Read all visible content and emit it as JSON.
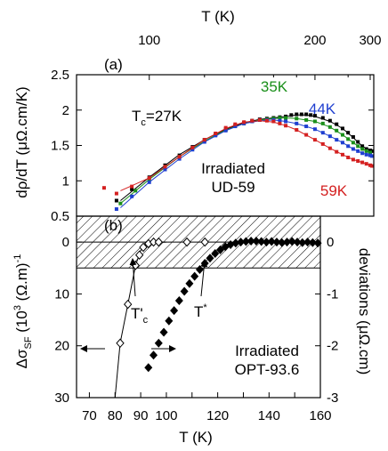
{
  "chart_data": [
    {
      "type": "scatter",
      "panel_label": "(a)",
      "xlabel": "T (K)",
      "ylabel": "dρ/dT (μΩ.cm/K)",
      "x_scale": "reciprocal",
      "xlim": [
        82,
        310
      ],
      "ylim": [
        0.5,
        2.5
      ],
      "x_ticks": [
        100,
        200,
        300
      ],
      "y_ticks": [
        0.5,
        1,
        1.5,
        2,
        2.5
      ],
      "tc_prefix": "T",
      "tc_sub": "c",
      "tc_value": "=27K",
      "label_lines": [
        "Irradiated",
        "UD-59"
      ],
      "series": [
        {
          "name": "27K",
          "color": "#000000",
          "points": [
            [
              91,
              0.72
            ],
            [
              95,
              0.88
            ],
            [
              100,
              1.05
            ],
            [
              105,
              1.22
            ],
            [
              110,
              1.36
            ],
            [
              115,
              1.48
            ],
            [
              120,
              1.58
            ],
            [
              125,
              1.66
            ],
            [
              130,
              1.73
            ],
            [
              135,
              1.78
            ],
            [
              140,
              1.82
            ],
            [
              145,
              1.85
            ],
            [
              150,
              1.87
            ],
            [
              155,
              1.88
            ],
            [
              160,
              1.89
            ],
            [
              165,
              1.9
            ],
            [
              170,
              1.91
            ],
            [
              175,
              1.93
            ],
            [
              180,
              1.94
            ],
            [
              185,
              1.94
            ],
            [
              190,
              1.94
            ],
            [
              195,
              1.93
            ],
            [
              200,
              1.92
            ],
            [
              210,
              1.89
            ],
            [
              220,
              1.85
            ],
            [
              230,
              1.8
            ],
            [
              240,
              1.74
            ],
            [
              250,
              1.68
            ],
            [
              260,
              1.62
            ],
            [
              270,
              1.55
            ],
            [
              280,
              1.49
            ],
            [
              290,
              1.45
            ],
            [
              300,
              1.43
            ],
            [
              305,
              1.42
            ]
          ],
          "fit": [
            [
              92,
              0.72
            ],
            [
              100,
              1.05
            ],
            [
              110,
              1.37
            ],
            [
              120,
              1.58
            ],
            [
              130,
              1.73
            ],
            [
              140,
              1.82
            ],
            [
              150,
              1.87
            ],
            [
              160,
              1.89
            ],
            [
              170,
              1.91
            ],
            [
              180,
              1.93
            ],
            [
              190,
              1.93
            ],
            [
              200,
              1.91
            ],
            [
              220,
              1.84
            ],
            [
              240,
              1.74
            ],
            [
              260,
              1.61
            ],
            [
              280,
              1.49
            ],
            [
              300,
              1.43
            ]
          ]
        },
        {
          "name": "35K",
          "color": "#1a8f1a",
          "points": [
            [
              92,
              0.68
            ],
            [
              96,
              0.86
            ],
            [
              100,
              1.02
            ],
            [
              105,
              1.2
            ],
            [
              110,
              1.34
            ],
            [
              115,
              1.46
            ],
            [
              120,
              1.57
            ],
            [
              125,
              1.65
            ],
            [
              130,
              1.72
            ],
            [
              135,
              1.77
            ],
            [
              140,
              1.81
            ],
            [
              145,
              1.84
            ],
            [
              150,
              1.86
            ],
            [
              155,
              1.87
            ],
            [
              160,
              1.88
            ],
            [
              165,
              1.89
            ],
            [
              170,
              1.89
            ],
            [
              180,
              1.88
            ],
            [
              190,
              1.86
            ],
            [
              200,
              1.84
            ],
            [
              210,
              1.81
            ],
            [
              220,
              1.76
            ],
            [
              230,
              1.71
            ],
            [
              240,
              1.65
            ],
            [
              250,
              1.59
            ],
            [
              260,
              1.54
            ],
            [
              270,
              1.49
            ],
            [
              280,
              1.45
            ],
            [
              290,
              1.42
            ],
            [
              300,
              1.4
            ]
          ],
          "fit": [
            [
              92,
              0.68
            ],
            [
              100,
              1.02
            ],
            [
              110,
              1.34
            ],
            [
              120,
              1.56
            ],
            [
              130,
              1.72
            ],
            [
              140,
              1.81
            ],
            [
              150,
              1.86
            ],
            [
              160,
              1.88
            ],
            [
              170,
              1.89
            ],
            [
              180,
              1.88
            ],
            [
              200,
              1.84
            ],
            [
              220,
              1.76
            ],
            [
              240,
              1.65
            ],
            [
              260,
              1.54
            ],
            [
              280,
              1.45
            ],
            [
              300,
              1.4
            ]
          ]
        },
        {
          "name": "44K",
          "color": "#1f3fd0",
          "points": [
            [
              91,
              0.6
            ],
            [
              95,
              0.78
            ],
            [
              100,
              0.98
            ],
            [
              105,
              1.16
            ],
            [
              110,
              1.31
            ],
            [
              115,
              1.44
            ],
            [
              120,
              1.55
            ],
            [
              125,
              1.64
            ],
            [
              130,
              1.71
            ],
            [
              135,
              1.77
            ],
            [
              140,
              1.81
            ],
            [
              145,
              1.84
            ],
            [
              150,
              1.86
            ],
            [
              155,
              1.86
            ],
            [
              160,
              1.86
            ],
            [
              165,
              1.85
            ],
            [
              170,
              1.84
            ],
            [
              180,
              1.81
            ],
            [
              190,
              1.77
            ],
            [
              200,
              1.73
            ],
            [
              210,
              1.68
            ],
            [
              220,
              1.63
            ],
            [
              230,
              1.58
            ],
            [
              240,
              1.54
            ],
            [
              250,
              1.49
            ],
            [
              260,
              1.45
            ],
            [
              270,
              1.42
            ],
            [
              280,
              1.39
            ],
            [
              290,
              1.37
            ],
            [
              300,
              1.36
            ],
            [
              305,
              1.35
            ]
          ],
          "fit": [
            [
              92,
              0.62
            ],
            [
              100,
              0.98
            ],
            [
              110,
              1.31
            ],
            [
              120,
              1.55
            ],
            [
              130,
              1.71
            ],
            [
              140,
              1.81
            ],
            [
              150,
              1.85
            ],
            [
              160,
              1.86
            ],
            [
              170,
              1.84
            ],
            [
              180,
              1.81
            ],
            [
              200,
              1.73
            ],
            [
              220,
              1.63
            ],
            [
              240,
              1.54
            ],
            [
              260,
              1.45
            ],
            [
              280,
              1.39
            ],
            [
              300,
              1.36
            ]
          ]
        },
        {
          "name": "59K",
          "color": "#d42020",
          "points": [
            [
              88,
              0.9
            ],
            [
              91,
              0.82
            ],
            [
              95,
              0.92
            ],
            [
              100,
              1.04
            ],
            [
              105,
              1.2
            ],
            [
              110,
              1.34
            ],
            [
              115,
              1.47
            ],
            [
              120,
              1.58
            ],
            [
              125,
              1.67
            ],
            [
              130,
              1.75
            ],
            [
              135,
              1.8
            ],
            [
              140,
              1.83
            ],
            [
              145,
              1.85
            ],
            [
              150,
              1.86
            ],
            [
              155,
              1.85
            ],
            [
              160,
              1.84
            ],
            [
              165,
              1.81
            ],
            [
              170,
              1.78
            ],
            [
              180,
              1.72
            ],
            [
              190,
              1.65
            ],
            [
              200,
              1.58
            ],
            [
              210,
              1.52
            ],
            [
              220,
              1.46
            ],
            [
              230,
              1.41
            ],
            [
              240,
              1.37
            ],
            [
              250,
              1.33
            ],
            [
              260,
              1.3
            ],
            [
              270,
              1.28
            ],
            [
              280,
              1.26
            ],
            [
              290,
              1.24
            ],
            [
              300,
              1.22
            ],
            [
              305,
              1.21
            ]
          ],
          "fit": [
            [
              92,
              0.86
            ],
            [
              100,
              1.04
            ],
            [
              110,
              1.34
            ],
            [
              120,
              1.58
            ],
            [
              130,
              1.74
            ],
            [
              140,
              1.83
            ],
            [
              150,
              1.85
            ],
            [
              160,
              1.83
            ],
            [
              170,
              1.78
            ],
            [
              180,
              1.72
            ],
            [
              200,
              1.58
            ],
            [
              220,
              1.46
            ],
            [
              240,
              1.37
            ],
            [
              260,
              1.3
            ],
            [
              280,
              1.26
            ],
            [
              300,
              1.22
            ]
          ]
        }
      ]
    },
    {
      "type": "scatter",
      "panel_label": "(b)",
      "xlabel": "T (K)",
      "ylabel_left_main": "Δσ",
      "ylabel_left_sub": "SF",
      "ylabel_left_rest": " (10",
      "ylabel_left_sup": "3",
      "ylabel_left_end": " (Ω.m)",
      "ylabel_left_sup2": "-1",
      "ylabel_right": "deviations (μΩ.cm)",
      "xlim": [
        65,
        160
      ],
      "y_left_lim": [
        -5,
        30
      ],
      "y_left_inverted": true,
      "y_right_lim": [
        -3,
        0.5
      ],
      "x_ticks": [
        70,
        80,
        90,
        100,
        110,
        120,
        130,
        140,
        150,
        160
      ],
      "y_left_ticks": [
        0,
        10,
        20,
        30
      ],
      "y_right_ticks": [
        0,
        -1,
        -2,
        -3
      ],
      "band_right": [
        -0.5,
        0.5
      ],
      "tc_prime_main": "T'",
      "tc_prime_sub": "c",
      "tstar_label": "T",
      "tstar_sup": "*",
      "label_lines": [
        "Irradiated",
        "OPT-93.6"
      ],
      "series": [
        {
          "name": "Δσ_SF",
          "axis": "left",
          "marker": "open-diamond",
          "points": [
            [
              82,
              19.5
            ],
            [
              85,
              12
            ],
            [
              88,
              4.5
            ],
            [
              89.5,
              2.5
            ],
            [
              91,
              1
            ],
            [
              93,
              0.3
            ],
            [
              95,
              0
            ],
            [
              97,
              0
            ],
            [
              108,
              0
            ],
            [
              115,
              0
            ]
          ],
          "fit": [
            [
              80,
              30
            ],
            [
              82,
              19.5
            ],
            [
              85,
              12
            ],
            [
              88,
              4.5
            ],
            [
              90,
              1.6
            ],
            [
              92,
              0.5
            ],
            [
              95,
              0.1
            ],
            [
              100,
              0
            ]
          ]
        },
        {
          "name": "deviations",
          "axis": "right",
          "marker": "filled-diamond",
          "points": [
            [
              93,
              -2.42
            ],
            [
              95,
              -2.18
            ],
            [
              97,
              -1.95
            ],
            [
              99,
              -1.74
            ],
            [
              101,
              -1.52
            ],
            [
              103,
              -1.32
            ],
            [
              105,
              -1.13
            ],
            [
              107,
              -0.95
            ],
            [
              109,
              -0.8
            ],
            [
              111,
              -0.66
            ],
            [
              113,
              -0.53
            ],
            [
              115,
              -0.41
            ],
            [
              117,
              -0.31
            ],
            [
              119,
              -0.22
            ],
            [
              121,
              -0.15
            ],
            [
              123,
              -0.09
            ],
            [
              125,
              -0.05
            ],
            [
              127,
              -0.02
            ],
            [
              129,
              0
            ],
            [
              131,
              0.01
            ],
            [
              133,
              0.02
            ],
            [
              135,
              0.02
            ],
            [
              137,
              0.01
            ],
            [
              139,
              0
            ],
            [
              141,
              0.01
            ],
            [
              143,
              0
            ],
            [
              145,
              -0.01
            ],
            [
              147,
              0
            ],
            [
              149,
              0.01
            ],
            [
              151,
              0
            ],
            [
              153,
              -0.01
            ],
            [
              155,
              0
            ],
            [
              157,
              -0.01
            ],
            [
              159,
              -0.02
            ]
          ]
        }
      ]
    }
  ]
}
